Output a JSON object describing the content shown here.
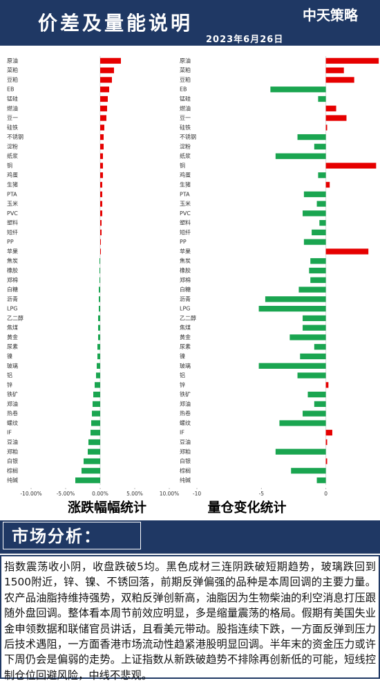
{
  "header": {
    "title": "价差及量能说明",
    "logo": "中天策略",
    "date": "2023年6月26日"
  },
  "chart_data": [
    {
      "type": "hbar",
      "title": "涨跌幅幅统计",
      "categories": [
        "原油",
        "菜粕",
        "豆粕",
        "EB",
        "锰硅",
        "燃油",
        "豆一",
        "硅铁",
        "不锈钢",
        "淀粉",
        "纸浆",
        "铜",
        "鸡蛋",
        "生猪",
        "PTA",
        "玉米",
        "PVC",
        "塑料",
        "短纤",
        "PP",
        "苹果",
        "焦炭",
        "橡胶",
        "郑棉",
        "白糖",
        "沥青",
        "LPG",
        "乙二醇",
        "焦煤",
        "黄金",
        "尿素",
        "镍",
        "玻璃",
        "铝",
        "锌",
        "铁矿",
        "郑油",
        "热卷",
        "螺纹",
        "IF",
        "豆油",
        "郑粕",
        "白银",
        "棕榈",
        "纯碱"
      ],
      "values": [
        3.0,
        2.0,
        1.7,
        1.3,
        1.1,
        1.0,
        0.9,
        0.6,
        0.5,
        0.5,
        0.4,
        0.4,
        0.4,
        0.3,
        0.3,
        0.3,
        0.3,
        0.2,
        0.2,
        0.1,
        0.1,
        -0.1,
        -0.1,
        -0.1,
        -0.2,
        -0.2,
        -0.2,
        -0.3,
        -0.3,
        -0.3,
        -0.4,
        -0.4,
        -0.5,
        -0.6,
        -0.8,
        -1.0,
        -1.1,
        -1.2,
        -1.3,
        -1.4,
        -1.7,
        -1.8,
        -2.4,
        -2.7,
        -3.6
      ],
      "xlim": [
        -10,
        10
      ],
      "xticks": [
        {
          "value": -10,
          "label": "-10.00%"
        },
        {
          "value": -5,
          "label": "-5.00%"
        },
        {
          "value": 0,
          "label": "0.00%"
        },
        {
          "value": 5,
          "label": "5.00%"
        },
        {
          "value": 10,
          "label": "10.00%"
        }
      ],
      "colors": {
        "positive": "#e60000",
        "negative": "#1aa550"
      }
    },
    {
      "type": "hbar",
      "title": "量仓变化统计",
      "categories": [
        "原油",
        "菜粕",
        "豆粕",
        "EB",
        "锰硅",
        "燃油",
        "豆一",
        "硅铁",
        "不锈钢",
        "淀粉",
        "纸浆",
        "铜",
        "鸡蛋",
        "生猪",
        "PTA",
        "玉米",
        "PVC",
        "塑料",
        "短纤",
        "PP",
        "苹果",
        "焦炭",
        "橡胶",
        "郑棉",
        "白糖",
        "沥青",
        "LPG",
        "乙二醇",
        "焦煤",
        "黄金",
        "尿素",
        "镍",
        "玻璃",
        "铝",
        "锌",
        "铁矿",
        "郑油",
        "热卷",
        "螺纹",
        "IF",
        "豆油",
        "郑粕",
        "白银",
        "棕榈",
        "纯碱"
      ],
      "values": [
        4.1,
        1.4,
        2.2,
        -4.3,
        -0.6,
        0.8,
        1.6,
        0.1,
        -2.2,
        -0.9,
        -3.9,
        3.9,
        -0.6,
        0.3,
        -1.7,
        -0.7,
        -1.8,
        -0.5,
        -1.1,
        -1.7,
        3.3,
        -1.2,
        -1.3,
        -1.2,
        -2.1,
        -4.7,
        -5.2,
        -1.8,
        -1.8,
        -2.8,
        -0.9,
        -2.0,
        -5.2,
        -2.2,
        0.2,
        -1.4,
        -0.9,
        -1.8,
        -3.6,
        0.5,
        0.1,
        -3.9,
        0.1,
        -2.7,
        -0.7
      ],
      "xlim": [
        -10,
        4.2
      ],
      "xticks": [
        -10,
        -5,
        0
      ],
      "colors": {
        "positive": "#e60000",
        "negative": "#1aa550"
      }
    }
  ],
  "analysis": {
    "heading": "市场分析：",
    "body": "指数震荡收小阴，收盘跌破5均。黑色成材三连阴跌破短期趋势，玻璃跌回到1500附近，锌、镍、不锈回落，前期反弹偏强的品种是本周回调的主要力量。农产品油脂持维持强势，双粕反弹创新高，油脂因为生物柴油的利空消息打压跟随外盘回调。整体看本周节前效应明显，多是缩量震荡的格局。假期有美国失业金申领数据和联储官员讲话，且看美元带动。股指连续下跌，一方面反弹到压力后技术遇阻，一方面香港市场流动性趋紧港股明显回调。半年末的资金压力或许下周仍会是偏弱的走势。上证指数从新跌破趋势不排除再创新低的可能，短线控制仓位回避风险，中线不悲观。"
  }
}
